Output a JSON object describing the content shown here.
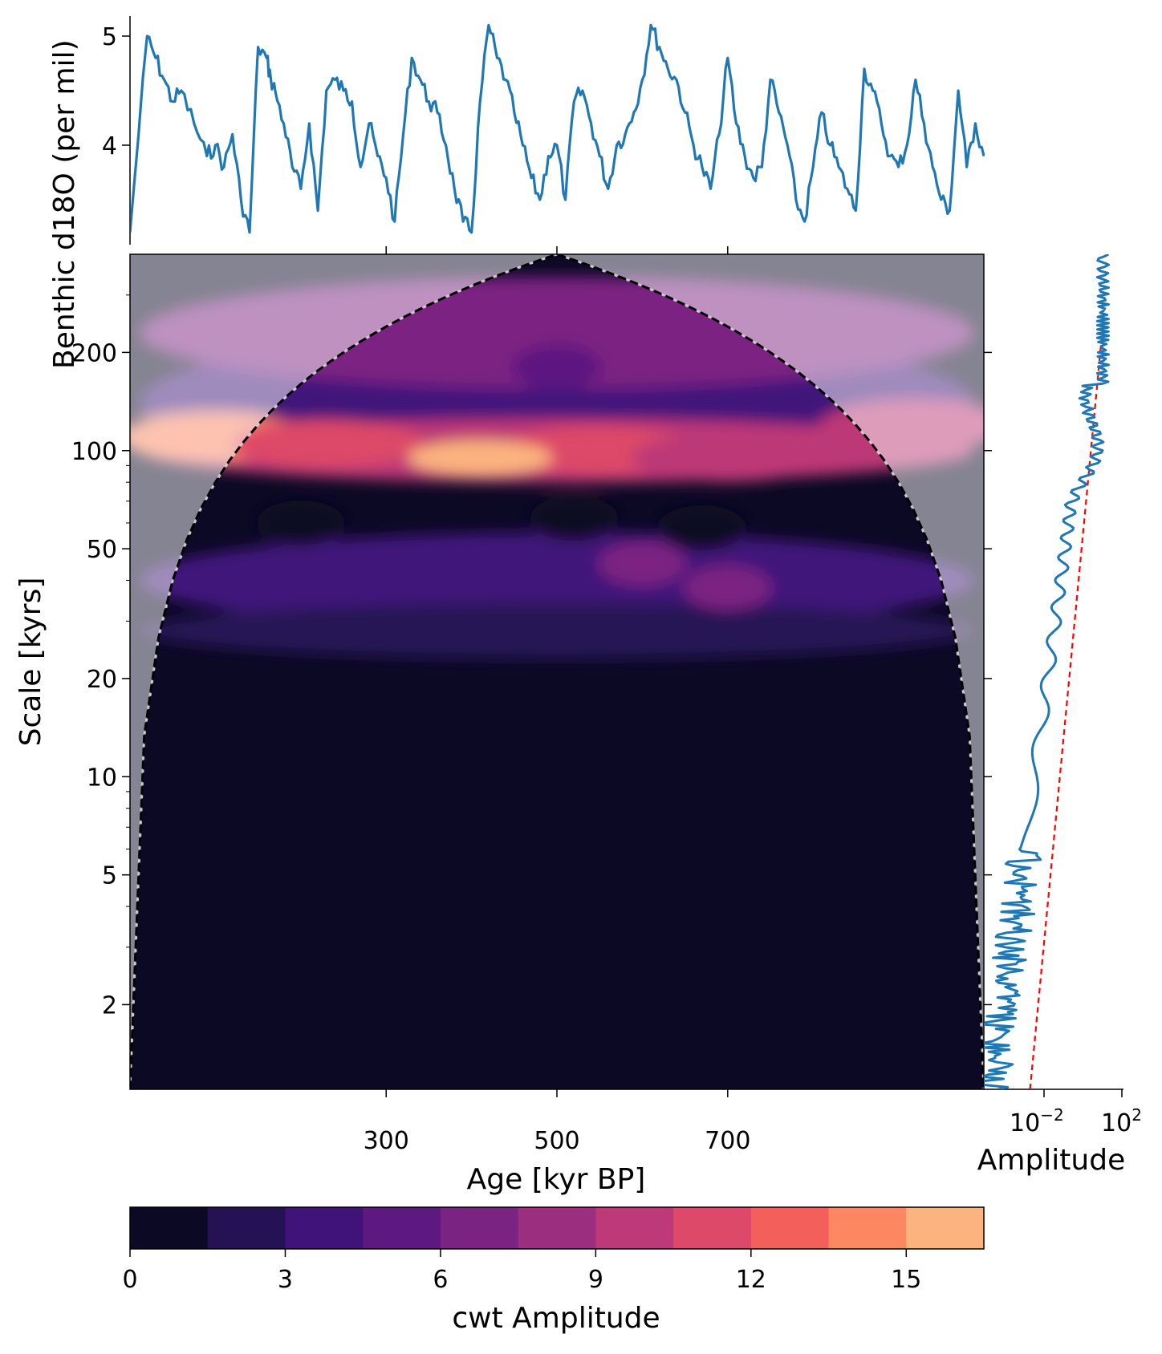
{
  "chart_data": [
    {
      "type": "line",
      "panel": "time-series",
      "ylabel": "Benthic d18O (per mil)",
      "y_ticks": [
        4,
        5
      ],
      "ylim": [
        3.0,
        5.2
      ],
      "xlim": [
        0,
        1000
      ],
      "color": "#1f77b4",
      "x": [
        0,
        20,
        30,
        40,
        50,
        60,
        75,
        90,
        100,
        110,
        120,
        130,
        140,
        150,
        160,
        165,
        170,
        180,
        190,
        200,
        210,
        220,
        230,
        240,
        250,
        260,
        270,
        280,
        290,
        300,
        310,
        320,
        330,
        340,
        350,
        360,
        370,
        380,
        390,
        400,
        410,
        420,
        430,
        440,
        450,
        460,
        470,
        480,
        490,
        500,
        510,
        520,
        530,
        540,
        550,
        560,
        570,
        580,
        590,
        600,
        610,
        620,
        630,
        640,
        650,
        660,
        670,
        680,
        690,
        700,
        710,
        720,
        730,
        740,
        750,
        760,
        770,
        780,
        790,
        800,
        810,
        820,
        830,
        840,
        850,
        860,
        870,
        880,
        890,
        900,
        910,
        920,
        930,
        940,
        950,
        960,
        970,
        980,
        990,
        1000
      ],
      "y": [
        3.2,
        5.0,
        4.8,
        4.6,
        4.4,
        4.5,
        4.2,
        3.9,
        4.0,
        3.8,
        4.1,
        3.5,
        3.2,
        4.9,
        4.8,
        4.6,
        4.5,
        4.2,
        3.8,
        3.6,
        4.2,
        3.4,
        4.5,
        4.6,
        4.5,
        4.4,
        3.8,
        4.2,
        3.9,
        3.7,
        3.3,
        4.1,
        4.8,
        4.6,
        4.4,
        4.3,
        4.0,
        3.6,
        3.3,
        3.2,
        4.4,
        5.1,
        4.8,
        4.6,
        4.3,
        4.0,
        3.7,
        3.5,
        3.9,
        4.0,
        3.5,
        4.4,
        4.5,
        4.2,
        3.9,
        3.6,
        4.0,
        4.1,
        4.3,
        4.6,
        5.1,
        4.9,
        4.7,
        4.6,
        4.3,
        4.0,
        3.8,
        3.6,
        4.1,
        4.8,
        4.2,
        3.9,
        3.7,
        3.8,
        4.6,
        4.3,
        4.0,
        3.5,
        3.3,
        3.8,
        4.3,
        4.0,
        3.8,
        3.6,
        3.4,
        4.7,
        4.5,
        4.2,
        3.9,
        3.8,
        4.0,
        4.6,
        4.2,
        3.8,
        3.5,
        3.4,
        4.5,
        3.8,
        4.2,
        3.9
      ]
    },
    {
      "type": "heatmap",
      "panel": "scalogram",
      "xlabel": "Age [kyr BP]",
      "ylabel": "Scale [kyrs]",
      "x_tick_labels": [
        "300",
        "500",
        "700"
      ],
      "x_ticks": [
        300,
        500,
        700
      ],
      "xlim": [
        0,
        1000
      ],
      "y_scale": "log",
      "y_ticks": [
        2,
        5,
        10,
        20,
        50,
        100,
        200
      ],
      "y_tick_labels": [
        "2",
        "5",
        "10",
        "20",
        "50",
        "100",
        "200"
      ],
      "ylim": [
        1.1,
        400
      ],
      "colormap": "magma",
      "peak": {
        "age": 410,
        "scale": 95,
        "amplitude": 16
      },
      "features": [
        {
          "age": 100,
          "scale": 110,
          "amplitude": 14
        },
        {
          "age": 230,
          "scale": 105,
          "amplitude": 11
        },
        {
          "age": 550,
          "scale": 100,
          "amplitude": 11
        },
        {
          "age": 700,
          "scale": 95,
          "amplitude": 10
        },
        {
          "age": 920,
          "scale": 120,
          "amplitude": 9
        },
        {
          "age": 600,
          "scale": 45,
          "amplitude": 6
        },
        {
          "age": 700,
          "scale": 38,
          "amplitude": 6
        },
        {
          "age": 200,
          "scale": 60,
          "amplitude": 1
        },
        {
          "age": 520,
          "scale": 62,
          "amplitude": 1
        },
        {
          "age": 670,
          "scale": 58,
          "amplitude": 1
        },
        {
          "age": 500,
          "scale": 180,
          "amplitude": 5
        }
      ],
      "cone_of_influence": "shaded outside, dashed boundary"
    },
    {
      "type": "line",
      "panel": "global-spectrum",
      "xlabel": "Amplitude",
      "x_scale": "log",
      "x_tick_labels": [
        "10",
        "−2",
        "10",
        "2"
      ],
      "xlim": [
        0.0001,
        100
      ],
      "series": [
        {
          "color": "#1f77b4",
          "style": "solid"
        },
        {
          "color": "#ff0000",
          "style": "dashed"
        }
      ]
    },
    {
      "type": "colorbar",
      "xlabel": "cwt Amplitude",
      "tick_labels": [
        "0",
        "3",
        "6",
        "9",
        "12",
        "15"
      ],
      "ticks": [
        0,
        3,
        6,
        9,
        12,
        15
      ],
      "range": [
        0,
        16.5
      ],
      "levels": 11,
      "colors": [
        "#0b0924",
        "#251255",
        "#40137a",
        "#5d1881",
        "#7b2382",
        "#9b2e7e",
        "#bd3977",
        "#dd4968",
        "#f3605b",
        "#fc8761",
        "#fdb37e",
        "#fcdfa4"
      ]
    }
  ]
}
